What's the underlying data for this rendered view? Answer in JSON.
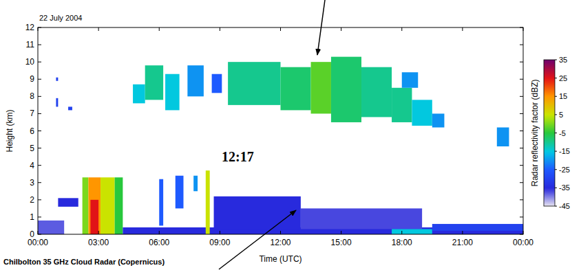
{
  "chart_data": {
    "type": "heatmap",
    "title": "22 July 2004",
    "x_label": "Time (UTC)",
    "y_label": "Height (km)",
    "footer": "Chilbolton 35 GHz Cloud Radar (Copernicus)",
    "annotations": [
      "12:17"
    ],
    "xlim": [
      0,
      24
    ],
    "xticks": [
      {
        "value": 0,
        "label": "00:00"
      },
      {
        "value": 3,
        "label": "03:00"
      },
      {
        "value": 6,
        "label": "06:00"
      },
      {
        "value": 9,
        "label": "09:00"
      },
      {
        "value": 12,
        "label": "12:00"
      },
      {
        "value": 15,
        "label": "15:00"
      },
      {
        "value": 18,
        "label": "18:00"
      },
      {
        "value": 21,
        "label": "21:00"
      },
      {
        "value": 24,
        "label": "00:00"
      }
    ],
    "ylim": [
      0,
      12
    ],
    "yticks": [
      0,
      1,
      2,
      3,
      4,
      5,
      6,
      7,
      8,
      9,
      10,
      11,
      12
    ],
    "colorbar": {
      "label": "Radar reflectivity factor (dBZ)",
      "range": [
        -45,
        35
      ],
      "ticks": [
        -45,
        -35,
        -25,
        -15,
        -5,
        5,
        15,
        25,
        35
      ]
    },
    "cells": [
      {
        "x": [
          0.9,
          1.0
        ],
        "y": [
          7.4,
          7.9
        ],
        "value": -30
      },
      {
        "x": [
          0.9,
          1.0
        ],
        "y": [
          8.9,
          9.1
        ],
        "value": -30
      },
      {
        "x": [
          1.5,
          1.7
        ],
        "y": [
          7.2,
          7.4
        ],
        "value": -30
      },
      {
        "x": [
          4.7,
          5.3
        ],
        "y": [
          7.6,
          8.7
        ],
        "value": -15
      },
      {
        "x": [
          5.3,
          6.2
        ],
        "y": [
          7.8,
          9.8
        ],
        "value": -10
      },
      {
        "x": [
          6.3,
          7.0
        ],
        "y": [
          7.2,
          9.3
        ],
        "value": -15
      },
      {
        "x": [
          7.4,
          8.2
        ],
        "y": [
          8.0,
          9.8
        ],
        "value": -20
      },
      {
        "x": [
          8.6,
          9.1
        ],
        "y": [
          8.2,
          9.3
        ],
        "value": -25
      },
      {
        "x": [
          9.4,
          12.0
        ],
        "y": [
          7.5,
          10.0
        ],
        "value": -10
      },
      {
        "x": [
          12.0,
          13.5
        ],
        "y": [
          7.2,
          9.7
        ],
        "value": -8
      },
      {
        "x": [
          13.5,
          14.5
        ],
        "y": [
          7.0,
          10.0
        ],
        "value": -2
      },
      {
        "x": [
          14.5,
          16.0
        ],
        "y": [
          6.5,
          10.3
        ],
        "value": -8
      },
      {
        "x": [
          16.0,
          17.5
        ],
        "y": [
          6.8,
          9.7
        ],
        "value": -10
      },
      {
        "x": [
          17.5,
          18.5
        ],
        "y": [
          6.5,
          8.5
        ],
        "value": -10
      },
      {
        "x": [
          18.0,
          18.8
        ],
        "y": [
          8.5,
          9.4
        ],
        "value": -20
      },
      {
        "x": [
          18.5,
          19.5
        ],
        "y": [
          6.3,
          7.8
        ],
        "value": -15
      },
      {
        "x": [
          19.5,
          20.1
        ],
        "y": [
          6.2,
          7.0
        ],
        "value": -20
      },
      {
        "x": [
          22.7,
          23.3
        ],
        "y": [
          5.1,
          6.2
        ],
        "value": -20
      },
      {
        "x": [
          0.0,
          1.3
        ],
        "y": [
          0.0,
          0.8
        ],
        "value": -38
      },
      {
        "x": [
          1.0,
          2.0
        ],
        "y": [
          1.6,
          2.1
        ],
        "value": -35
      },
      {
        "x": [
          2.2,
          2.5
        ],
        "y": [
          0.0,
          3.3
        ],
        "value": 0
      },
      {
        "x": [
          2.5,
          3.1
        ],
        "y": [
          0.0,
          3.3
        ],
        "value": 15
      },
      {
        "x": [
          2.6,
          3.0
        ],
        "y": [
          0.0,
          2.0
        ],
        "value": 25
      },
      {
        "x": [
          3.1,
          3.8
        ],
        "y": [
          0.0,
          3.3
        ],
        "value": 5
      },
      {
        "x": [
          3.8,
          4.2
        ],
        "y": [
          0.0,
          3.3
        ],
        "value": -5
      },
      {
        "x": [
          4.2,
          24.0
        ],
        "y": [
          0.0,
          0.4
        ],
        "value": -35
      },
      {
        "x": [
          6.0,
          6.2
        ],
        "y": [
          0.5,
          3.2
        ],
        "value": -25
      },
      {
        "x": [
          6.8,
          7.2
        ],
        "y": [
          1.5,
          3.4
        ],
        "value": -25
      },
      {
        "x": [
          7.7,
          7.9
        ],
        "y": [
          2.5,
          3.4
        ],
        "value": -20
      },
      {
        "x": [
          8.3,
          8.5
        ],
        "y": [
          0.0,
          3.7
        ],
        "value": 5
      },
      {
        "x": [
          8.7,
          13.0
        ],
        "y": [
          0.3,
          2.2
        ],
        "value": -35
      },
      {
        "x": [
          13.0,
          19.0
        ],
        "y": [
          0.3,
          1.5
        ],
        "value": -37
      },
      {
        "x": [
          17.5,
          19.5
        ],
        "y": [
          0.0,
          0.3
        ],
        "value": -15
      },
      {
        "x": [
          19.5,
          24.0
        ],
        "y": [
          0.2,
          0.6
        ],
        "value": -30
      }
    ]
  }
}
